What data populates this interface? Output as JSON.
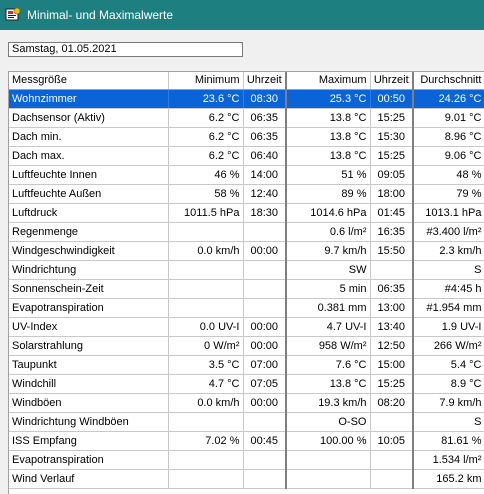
{
  "window": {
    "title": "Minimal- und Maximalwerte"
  },
  "date": {
    "value": "Samstag, 01.05.2021"
  },
  "table": {
    "headers": {
      "name": "Messgröße",
      "minimum": "Minimum",
      "min_time": "Uhrzeit",
      "maximum": "Maximum",
      "max_time": "Uhrzeit",
      "average": "Durchschnitt"
    },
    "selected_row": 0,
    "rows": [
      {
        "name": "Wohnzimmer",
        "min": "23.6 °C",
        "min_time": "08:30",
        "max": "25.3 °C",
        "max_time": "00:50",
        "avg": "24.26 °C"
      },
      {
        "name": "Dachsensor (Aktiv)",
        "min": "6.2 °C",
        "min_time": "06:35",
        "max": "13.8 °C",
        "max_time": "15:25",
        "avg": "9.01 °C"
      },
      {
        "name": "Dach min.",
        "min": "6.2 °C",
        "min_time": "06:35",
        "max": "13.8 °C",
        "max_time": "15:30",
        "avg": "8.96 °C"
      },
      {
        "name": "Dach max.",
        "min": "6.2 °C",
        "min_time": "06:40",
        "max": "13.8 °C",
        "max_time": "15:25",
        "avg": "9.06 °C"
      },
      {
        "name": "Luftfeuchte Innen",
        "min": "46 %",
        "min_time": "14:00",
        "max": "51 %",
        "max_time": "09:05",
        "avg": "48 %"
      },
      {
        "name": "Luftfeuchte Außen",
        "min": "58 %",
        "min_time": "12:40",
        "max": "89 %",
        "max_time": "18:00",
        "avg": "79 %"
      },
      {
        "name": "Luftdruck",
        "min": "1011.5 hPa",
        "min_time": "18:30",
        "max": "1014.6 hPa",
        "max_time": "01:45",
        "avg": "1013.1 hPa"
      },
      {
        "name": "Regenmenge",
        "min": "",
        "min_time": "",
        "max": "0.6 l/m²",
        "max_time": "16:35",
        "avg": "#3.400 l/m²"
      },
      {
        "name": "Windgeschwindigkeit",
        "min": "0.0 km/h",
        "min_time": "00:00",
        "max": "9.7 km/h",
        "max_time": "15:50",
        "avg": "2.3 km/h"
      },
      {
        "name": "Windrichtung",
        "min": "",
        "min_time": "",
        "max": "SW",
        "max_time": "",
        "avg": "S"
      },
      {
        "name": "Sonnenschein-Zeit",
        "min": "",
        "min_time": "",
        "max": "5 min",
        "max_time": "06:35",
        "avg": "#4:45 h"
      },
      {
        "name": "Evapotranspiration",
        "min": "",
        "min_time": "",
        "max": "0.381 mm",
        "max_time": "13:00",
        "avg": "#1.954 mm"
      },
      {
        "name": "UV-Index",
        "min": "0.0 UV-I",
        "min_time": "00:00",
        "max": "4.7 UV-I",
        "max_time": "13:40",
        "avg": "1.9 UV-I"
      },
      {
        "name": "Solarstrahlung",
        "min": "0 W/m²",
        "min_time": "00:00",
        "max": "958 W/m²",
        "max_time": "12:50",
        "avg": "266 W/m²"
      },
      {
        "name": "Taupunkt",
        "min": "3.5 °C",
        "min_time": "07:00",
        "max": "7.6 °C",
        "max_time": "15:00",
        "avg": "5.4 °C"
      },
      {
        "name": "Windchill",
        "min": "4.7 °C",
        "min_time": "07:05",
        "max": "13.8 °C",
        "max_time": "15:25",
        "avg": "8.9 °C"
      },
      {
        "name": "Windböen",
        "min": "0.0 km/h",
        "min_time": "00:00",
        "max": "19.3 km/h",
        "max_time": "08:20",
        "avg": "7.9 km/h"
      },
      {
        "name": "Windrichtung Windböen",
        "min": "",
        "min_time": "",
        "max": "O-SO",
        "max_time": "",
        "avg": "S"
      },
      {
        "name": "ISS Empfang",
        "min": "7.02 %",
        "min_time": "00:45",
        "max": "100.00 %",
        "max_time": "10:05",
        "avg": "81.61 %"
      },
      {
        "name": "Evapotranspiration",
        "min": "",
        "min_time": "",
        "max": "",
        "max_time": "",
        "avg": "1.534 l/m²"
      },
      {
        "name": "Wind Verlauf",
        "min": "",
        "min_time": "",
        "max": "",
        "max_time": "",
        "avg": "165.2 km"
      }
    ]
  }
}
